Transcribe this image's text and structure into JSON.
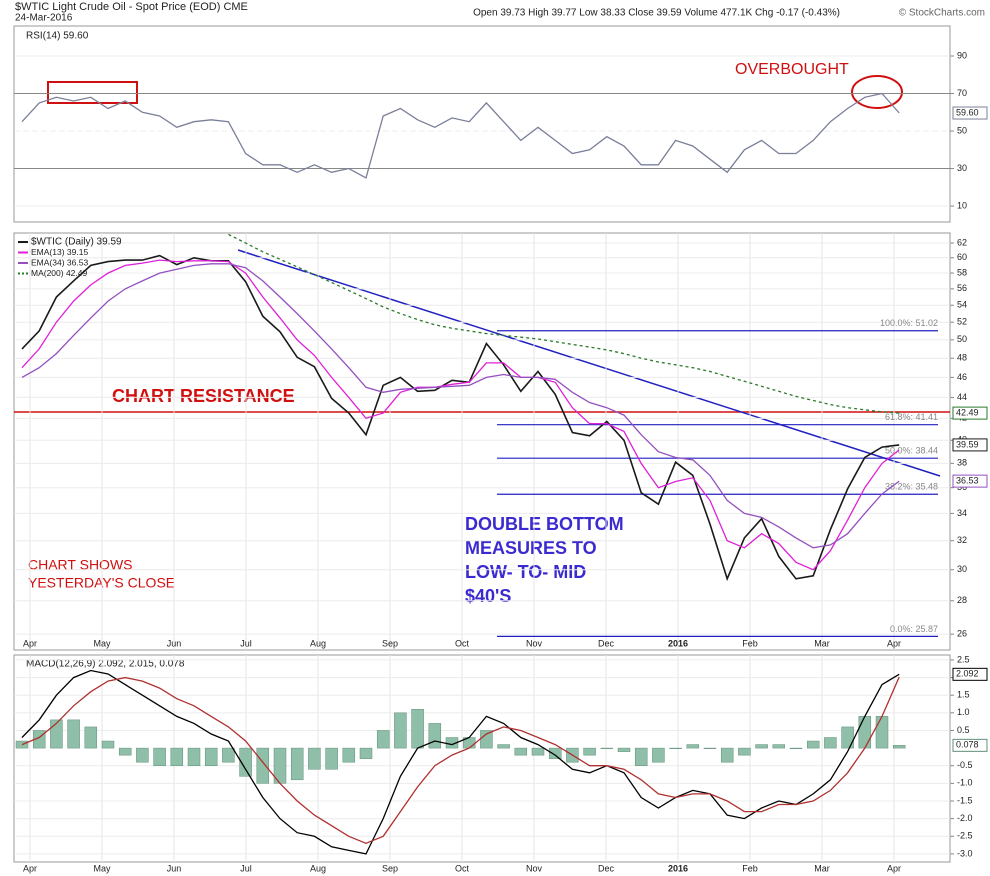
{
  "header": {
    "title": "$WTIC Light Crude Oil - Spot Price (EOD) CME",
    "date": "24-Mar-2016",
    "quote": "Open 39.73 High 39.77 Low 38.33 Close 39.59 Volume 477.1K Chg -0.17 (-0.43%)",
    "credit": "© StockCharts.com"
  },
  "chart_data": [
    {
      "type": "line",
      "title": "RSI(14) 59.60",
      "ylim": [
        1.5,
        106
      ],
      "yticks": [
        90,
        70,
        50,
        30,
        10
      ],
      "grid": true,
      "annotations": {
        "overbought": "OVERBOUGHT"
      },
      "series": [
        {
          "color": "#7a7f99",
          "current_label": "59.60",
          "values": [
            55,
            65,
            68,
            66,
            68,
            62,
            66,
            60,
            58,
            52,
            55,
            56,
            55,
            38,
            32,
            32,
            28,
            32,
            28,
            30,
            25,
            58,
            62,
            56,
            52,
            57,
            55,
            65,
            55,
            45,
            52,
            45,
            38,
            40,
            47,
            42,
            32,
            32,
            45,
            42,
            35,
            28,
            40,
            45,
            38,
            38,
            45,
            55,
            62,
            68,
            70,
            59.6
          ]
        }
      ]
    },
    {
      "type": "line",
      "log": true,
      "ylim": [
        25.1,
        63.4
      ],
      "grid": true,
      "yticks": [
        26,
        28,
        30,
        32,
        34,
        36,
        38,
        40,
        42,
        44,
        46,
        48,
        50,
        52,
        54,
        56,
        58,
        60,
        62
      ],
      "months": [
        "Apr",
        "May",
        "Jun",
        "Jul",
        "Aug",
        "Sep",
        "Oct",
        "Nov",
        "Dec",
        "2016",
        "Feb",
        "Mar",
        "Apr"
      ],
      "annotations": {
        "resistance": "CHART RESISTANCE",
        "measure": [
          "DOUBLE BOTTOM",
          "MEASURES TO",
          "LOW- TO- MID",
          "$40'S"
        ],
        "note": [
          "CHART SHOWS",
          "YESTERDAY'S CLOSE"
        ]
      },
      "fib_levels": [
        {
          "label": "100.0%: 51.02",
          "value": 51.02
        },
        {
          "label": "61.8%: 41.41",
          "value": 41.41
        },
        {
          "label": "50.0%: 38.44",
          "value": 38.44
        },
        {
          "label": "38.2%: 35.48",
          "value": 35.48
        },
        {
          "label": "0.0%: 25.87",
          "value": 25.87
        }
      ],
      "series": [
        {
          "name": "$WTIC (Daily) 39.59",
          "color": "#1a1a1a",
          "boxed": true,
          "values": [
            49,
            51,
            55,
            57,
            59,
            59.5,
            59.7,
            59.7,
            60.3,
            59.1,
            60,
            59.6,
            59.6,
            56.9,
            52.7,
            50.9,
            48.1,
            47.1,
            43.9,
            42.5,
            40.5,
            45.2,
            46,
            44.6,
            44.7,
            45.7,
            45.5,
            49.6,
            47.3,
            44.6,
            46.6,
            44.3,
            40.7,
            40.4,
            41.7,
            40,
            35.6,
            34.7,
            38.1,
            37,
            33.2,
            29.4,
            32.2,
            33.6,
            30.9,
            29.4,
            29.6,
            32.8,
            35.9,
            38.5,
            39.4,
            39.59
          ]
        },
        {
          "name": "EMA(13) 39.15",
          "color": "#e020d8",
          "values": [
            47,
            49,
            52,
            54.5,
            56.5,
            58,
            59,
            59.3,
            59.7,
            59.5,
            59.6,
            59.6,
            59.5,
            58,
            55,
            52.5,
            50,
            48.3,
            46,
            44,
            42,
            42.5,
            44.5,
            45,
            45,
            45.3,
            45.5,
            47.5,
            47.5,
            46,
            46,
            45.5,
            43,
            41.5,
            41.5,
            40.8,
            38,
            36,
            36.5,
            36.8,
            35,
            32,
            31.5,
            32.5,
            31.8,
            30.5,
            30,
            31.3,
            33.5,
            36,
            38,
            39.15
          ]
        },
        {
          "name": "EMA(34) 36.53",
          "color": "#9450c0",
          "boxed": true,
          "values": [
            46,
            47,
            48.5,
            50.5,
            52.5,
            54.5,
            56,
            57,
            58,
            58.5,
            59,
            59.2,
            59.2,
            58.7,
            57,
            55,
            53,
            51,
            49,
            47,
            45,
            44.5,
            44.8,
            44.9,
            45,
            45.1,
            45.2,
            46,
            46.3,
            46,
            46,
            45.8,
            44.5,
            43.5,
            43,
            42.3,
            40.5,
            39,
            38.5,
            38.3,
            37,
            35,
            34,
            33.7,
            33,
            32.2,
            31.5,
            31.7,
            32.5,
            34,
            35.5,
            36.53
          ]
        },
        {
          "name": "MA(200) 42.49",
          "color": "#2a7a2a",
          "dotted": true,
          "boxed": true,
          "values": [
            null,
            null,
            null,
            null,
            null,
            null,
            null,
            null,
            null,
            null,
            null,
            null,
            63.2,
            62,
            60.8,
            59.8,
            58.8,
            57.8,
            56.8,
            55.8,
            54.8,
            53.8,
            53,
            52.3,
            51.7,
            51.3,
            51,
            50.7,
            50.5,
            50.3,
            50.1,
            49.8,
            49.5,
            49.2,
            48.9,
            48.5,
            48,
            47.6,
            47.3,
            47,
            46.6,
            46.1,
            45.6,
            45.1,
            44.6,
            44.1,
            43.7,
            43.3,
            43,
            42.8,
            42.6,
            42.49
          ]
        }
      ]
    },
    {
      "type": "line",
      "title": "MACD(12,26,9) 2.092, 2.015, 0.078",
      "ylim": [
        -3.23,
        2.64
      ],
      "grid": true,
      "months": [
        "Apr",
        "May",
        "Jun",
        "Jul",
        "Aug",
        "Sep",
        "Oct",
        "Nov",
        "Dec",
        "2016",
        "Feb",
        "Mar",
        "Apr"
      ],
      "yticks": [
        {
          "value": 2.5,
          "label": "2.5"
        },
        {
          "value": 2,
          "label": "2.0"
        },
        {
          "value": 1.5,
          "label": "1.5"
        },
        {
          "value": 1,
          "label": "1.0"
        },
        0.5,
        -0.5,
        {
          "value": -1,
          "label": "-1.0"
        },
        -1.5,
        {
          "value": -2,
          "label": "-2.0"
        },
        -2.5,
        {
          "value": -3,
          "label": "-3.0"
        }
      ],
      "series": [
        {
          "type": "bar",
          "color": "#8fbfa8",
          "boxed": true,
          "values": [
            0.2,
            0.5,
            0.8,
            0.8,
            0.6,
            0.2,
            -0.2,
            -0.4,
            -0.5,
            -0.5,
            -0.5,
            -0.5,
            -0.4,
            -0.8,
            -1.0,
            -1.0,
            -0.9,
            -0.6,
            -0.6,
            -0.4,
            -0.3,
            0.5,
            1.0,
            1.1,
            0.7,
            0.3,
            0.3,
            0.5,
            0.1,
            -0.2,
            -0.2,
            -0.3,
            -0.4,
            -0.2,
            0,
            -0.1,
            -0.5,
            -0.4,
            0,
            0.1,
            0,
            -0.4,
            -0.2,
            0.1,
            0.1,
            0,
            0.2,
            0.3,
            0.6,
            0.9,
            0.9,
            0.078
          ]
        },
        {
          "color": "#000000",
          "boxed": true,
          "values": [
            0.3,
            0.8,
            1.5,
            2,
            2.2,
            2.1,
            1.8,
            1.5,
            1.2,
            0.9,
            0.7,
            0.4,
            0.2,
            -0.6,
            -1.4,
            -2,
            -2.4,
            -2.5,
            -2.8,
            -2.9,
            -3,
            -2,
            -0.8,
            0,
            0.2,
            0.1,
            0.3,
            0.9,
            0.7,
            0.3,
            0.1,
            -0.2,
            -0.6,
            -0.7,
            -0.5,
            -0.7,
            -1.4,
            -1.7,
            -1.4,
            -1.2,
            -1.3,
            -1.9,
            -2,
            -1.7,
            -1.5,
            -1.6,
            -1.3,
            -0.9,
            -0.1,
            0.9,
            1.8,
            2.092
          ]
        },
        {
          "color": "#b03030",
          "values": [
            0.1,
            0.3,
            0.7,
            1.2,
            1.6,
            1.9,
            2,
            1.9,
            1.7,
            1.4,
            1.2,
            0.9,
            0.6,
            0.2,
            -0.4,
            -1,
            -1.5,
            -1.9,
            -2.2,
            -2.5,
            -2.7,
            -2.5,
            -1.8,
            -1.1,
            -0.5,
            -0.2,
            0,
            0.4,
            0.6,
            0.5,
            0.3,
            0.1,
            -0.2,
            -0.5,
            -0.5,
            -0.6,
            -0.9,
            -1.3,
            -1.4,
            -1.3,
            -1.3,
            -1.5,
            -1.8,
            -1.8,
            -1.6,
            -1.6,
            -1.5,
            -1.2,
            -0.7,
            0,
            0.9,
            2.015
          ]
        }
      ]
    }
  ]
}
